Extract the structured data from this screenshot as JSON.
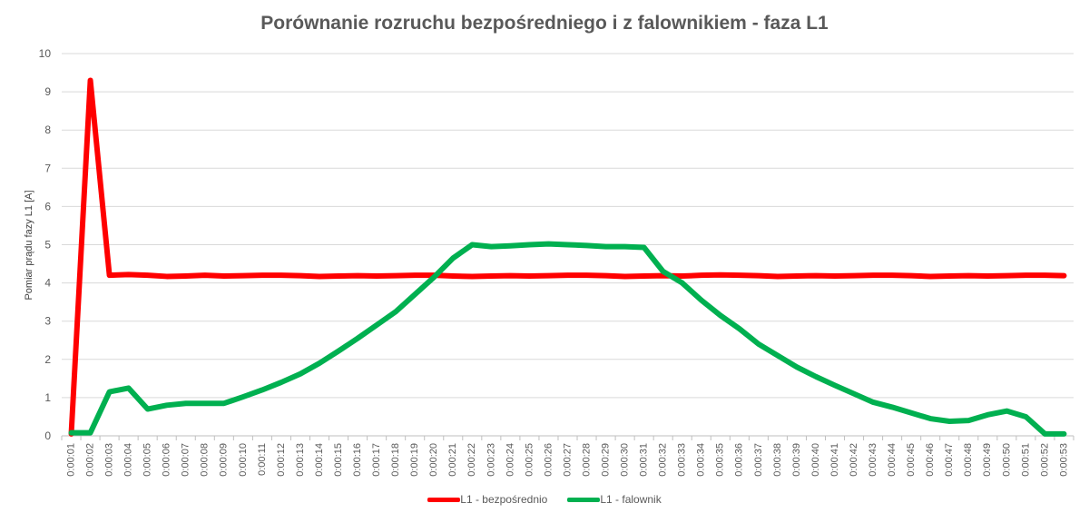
{
  "chart_data": {
    "type": "line",
    "title": "Porównanie rozruchu bezpośredniego i z falownikiem - faza L1",
    "xlabel": "",
    "ylabel": "Pomiar prądu fazy L1 [A]",
    "ylim": [
      0,
      10
    ],
    "yticks": [
      "0",
      "1",
      "2",
      "3",
      "4",
      "5",
      "6",
      "7",
      "8",
      "9",
      "10"
    ],
    "grid": true,
    "legend_position": "bottom",
    "categories": [
      "0:00:01",
      "0:00:02",
      "0:00:03",
      "0:00:04",
      "0:00:05",
      "0:00:06",
      "0:00:07",
      "0:00:08",
      "0:00:09",
      "0:00:10",
      "0:00:11",
      "0:00:12",
      "0:00:13",
      "0:00:14",
      "0:00:15",
      "0:00:16",
      "0:00:17",
      "0:00:18",
      "0:00:19",
      "0:00:20",
      "0:00:21",
      "0:00:22",
      "0:00:23",
      "0:00:24",
      "0:00:25",
      "0:00:26",
      "0:00:27",
      "0:00:28",
      "0:00:29",
      "0:00:30",
      "0:00:31",
      "0:00:32",
      "0:00:33",
      "0:00:34",
      "0:00:35",
      "0:00:36",
      "0:00:37",
      "0:00:38",
      "0:00:39",
      "0:00:40",
      "0:00:41",
      "0:00:42",
      "0:00:43",
      "0:00:44",
      "0:00:45",
      "0:00:46",
      "0:00:47",
      "0:00:48",
      "0:00:49",
      "0:00:50",
      "0:00:51",
      "0:00:52",
      "0:00:53"
    ],
    "series": [
      {
        "name": "L1 - bezpośrednio",
        "color": "#ff0000",
        "values": [
          0.05,
          9.3,
          4.2,
          4.22,
          4.2,
          4.17,
          4.18,
          4.2,
          4.18,
          4.19,
          4.2,
          4.2,
          4.19,
          4.17,
          4.18,
          4.19,
          4.18,
          4.19,
          4.2,
          4.2,
          4.18,
          4.17,
          4.18,
          4.19,
          4.18,
          4.19,
          4.2,
          4.2,
          4.19,
          4.17,
          4.18,
          4.19,
          4.18,
          4.2,
          4.21,
          4.2,
          4.19,
          4.17,
          4.18,
          4.19,
          4.18,
          4.19,
          4.2,
          4.2,
          4.19,
          4.17,
          4.18,
          4.19,
          4.18,
          4.19,
          4.2,
          4.2,
          4.19
        ]
      },
      {
        "name": "L1 - falownik",
        "color": "#00b050",
        "values": [
          0.08,
          0.08,
          1.15,
          1.25,
          0.7,
          0.8,
          0.85,
          0.85,
          0.85,
          1.02,
          1.2,
          1.4,
          1.62,
          1.9,
          2.22,
          2.55,
          2.9,
          3.25,
          3.7,
          4.15,
          4.65,
          5.0,
          4.95,
          4.97,
          5.0,
          5.02,
          5.0,
          4.98,
          4.95,
          4.95,
          4.93,
          4.3,
          4.0,
          3.55,
          3.15,
          2.8,
          2.4,
          2.1,
          1.8,
          1.55,
          1.32,
          1.1,
          0.88,
          0.75,
          0.6,
          0.45,
          0.38,
          0.4,
          0.55,
          0.65,
          0.5,
          0.05,
          0.05
        ]
      }
    ]
  }
}
